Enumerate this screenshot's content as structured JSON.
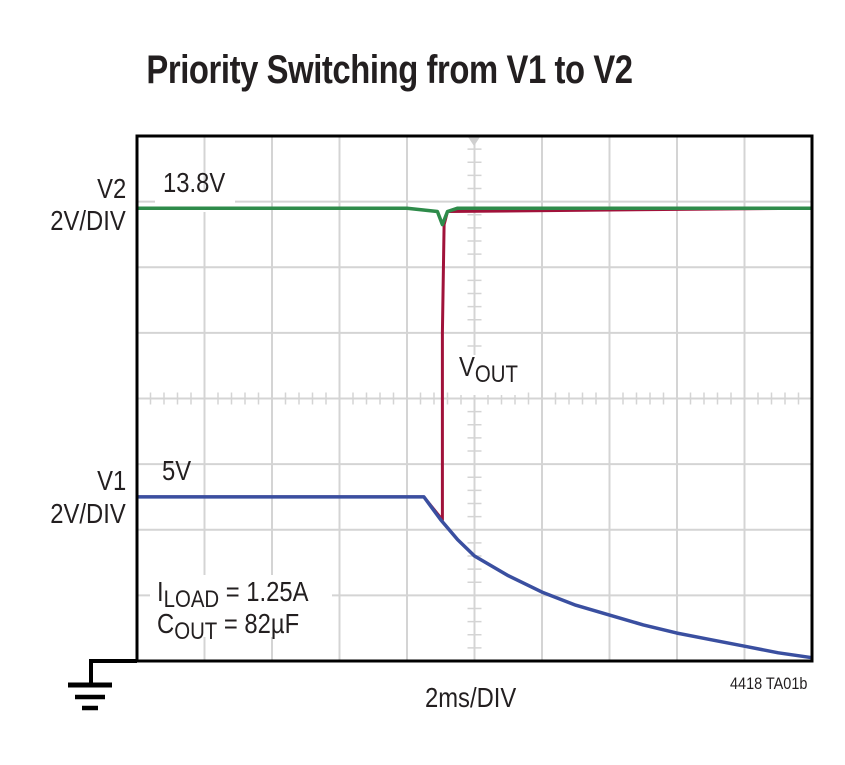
{
  "title": "Priority Switching from V1 to V2",
  "figure_id": "4418 TA01b",
  "x_axis_label": "2ms/DIV",
  "channels": {
    "v2": {
      "name": "V2",
      "scale": "2V/DIV",
      "level_label": "13.8V",
      "color": "#2e8b4a"
    },
    "v1": {
      "name": "V1",
      "scale": "2V/DIV",
      "level_label": "5V",
      "color": "#3a4fa0"
    },
    "vout": {
      "name": "V",
      "subscript": "OUT",
      "color": "#a0123a"
    }
  },
  "conditions": {
    "iload_label": "I",
    "iload_sub": "LOAD",
    "iload_value": " = 1.25A",
    "cout_label": "C",
    "cout_sub": "OUT",
    "cout_value": " = 82µF"
  },
  "colors": {
    "grid": "#d4d4d4",
    "frame": "#000000",
    "text": "#231f20"
  },
  "chart_data": {
    "type": "line",
    "title": "Priority Switching from V1 to V2",
    "xlabel": "2ms/DIV",
    "ylabel": "2V/DIV",
    "x_unit": "ms",
    "y_unit": "V",
    "xlim": [
      0,
      20
    ],
    "ylim": [
      0,
      16
    ],
    "grid": true,
    "divisions": {
      "horizontal": 10,
      "vertical": 8
    },
    "annotations": [
      "V2 13.8V",
      "V1 5V",
      "VOUT",
      "ILOAD = 1.25A",
      "COUT = 82µF",
      "4418 TA01b"
    ],
    "series": [
      {
        "name": "V2",
        "color": "#2e8b4a",
        "x": [
          0,
          2,
          4,
          6,
          8,
          8.9,
          9.05,
          9.2,
          9.5,
          10,
          12,
          14,
          16,
          18,
          20
        ],
        "y": [
          13.8,
          13.8,
          13.8,
          13.8,
          13.8,
          13.7,
          13.3,
          13.7,
          13.8,
          13.8,
          13.8,
          13.8,
          13.8,
          13.8,
          13.8
        ]
      },
      {
        "name": "V1",
        "color": "#3a4fa0",
        "x": [
          0,
          2,
          4,
          6,
          8,
          8.5,
          9.0,
          9.5,
          10,
          11,
          12,
          13,
          14,
          15,
          16,
          17,
          18,
          19,
          20
        ],
        "y": [
          5.0,
          5.0,
          5.0,
          5.0,
          5.0,
          5.0,
          4.3,
          3.7,
          3.2,
          2.6,
          2.1,
          1.7,
          1.4,
          1.1,
          0.85,
          0.65,
          0.45,
          0.25,
          0.1
        ]
      },
      {
        "name": "VOUT",
        "color": "#a0123a",
        "x": [
          0,
          8.5,
          9.05,
          9.05,
          9.1,
          9.2,
          20
        ],
        "y": [
          5.0,
          5.0,
          4.3,
          10.0,
          13.3,
          13.7,
          13.8
        ]
      }
    ]
  }
}
